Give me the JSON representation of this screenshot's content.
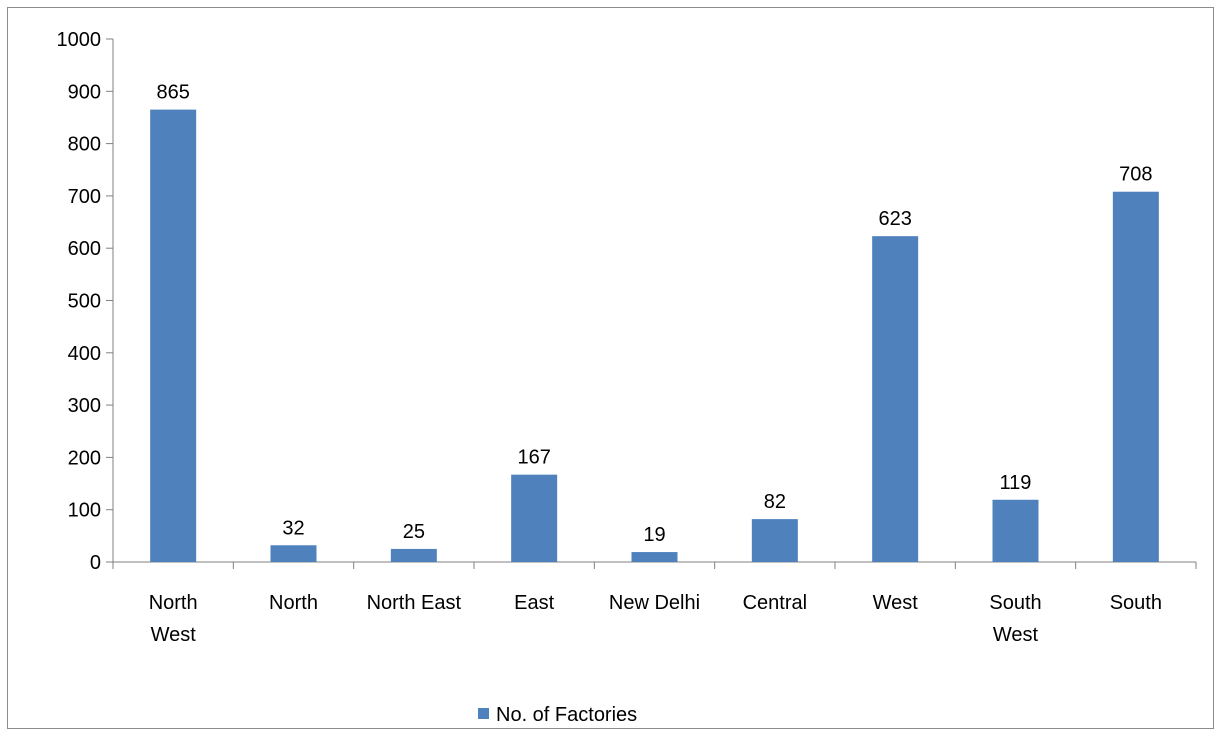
{
  "chart_data": {
    "type": "bar",
    "title": "",
    "xlabel": "",
    "ylabel": "",
    "categories": [
      [
        "North",
        "West"
      ],
      [
        "North"
      ],
      [
        "North East"
      ],
      [
        "East"
      ],
      [
        "New Delhi"
      ],
      [
        "Central"
      ],
      [
        "West"
      ],
      [
        "South",
        "West"
      ],
      [
        "South"
      ]
    ],
    "series": [
      {
        "name": "No. of Factories",
        "color": "#4f81bd",
        "values": [
          865,
          32,
          25,
          167,
          19,
          82,
          623,
          119,
          708
        ]
      }
    ],
    "ylim": [
      0,
      1000
    ],
    "yticks": [
      "0",
      "100",
      "200",
      "300",
      "400",
      "500",
      "600",
      "700",
      "800",
      "900",
      "1000"
    ],
    "grid": false,
    "legend_position": "bottom",
    "data_labels": true
  }
}
